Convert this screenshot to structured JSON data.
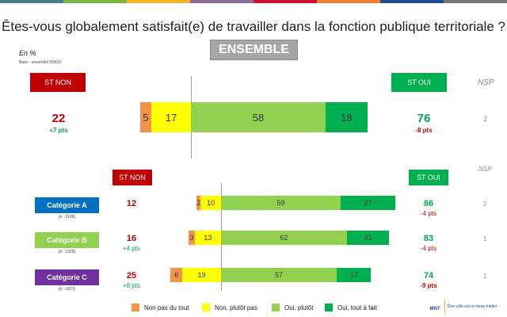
{
  "title": "Êtes-vous globalement satisfait(e) de travailler dans la fonction publique territoriale ?",
  "badge": "ENSEMBLE",
  "unit": "En %",
  "base": "Base : ensemble (5902)",
  "headers": {
    "st_non": "ST NON",
    "st_oui": "ST OUI",
    "nsp": "NSP"
  },
  "colors": {
    "non_pas_du_tout": "#f4934a",
    "non_plutot_pas": "#ffff00",
    "oui_plutot": "#92d050",
    "oui_tout_a_fait": "#00b050",
    "st_non": "#c00000",
    "st_oui": "#00b050",
    "cat_a": "#0070c0",
    "cat_b": "#92d050",
    "cat_c": "#7030a0"
  },
  "chart_data": {
    "type": "bar",
    "orientation": "horizontal-diverging-stacked",
    "legend": [
      "Non pas du tout",
      "Non, plutôt pas",
      "Oui, plutôt",
      "Oui, tout à fait"
    ],
    "legend_position": "bottom",
    "overall": {
      "label": "ENSEMBLE",
      "values": [
        5,
        17,
        58,
        18
      ],
      "st_non": "22",
      "st_non_delta": "+7 pts",
      "st_oui": "76",
      "st_oui_delta": "-8 pts",
      "nsp": "1"
    },
    "categories": [
      {
        "label": "Catégorie A",
        "base": "(b : 2106)",
        "values": [
          2,
          10,
          59,
          27
        ],
        "st_non": "12",
        "st_non_delta": "",
        "st_oui": "86",
        "st_oui_delta": "-4 pts",
        "nsp": "2"
      },
      {
        "label": "Catégorie B",
        "base": "(b : 1925)",
        "values": [
          3,
          13,
          62,
          21
        ],
        "st_non": "16",
        "st_non_delta": "+4 pts",
        "st_oui": "83",
        "st_oui_delta": "-4 pts",
        "nsp": "1"
      },
      {
        "label": "Catégorie C",
        "base": "(b : 1871)",
        "values": [
          6,
          19,
          57,
          17
        ],
        "st_non": "25",
        "st_non_delta": "+8 pts",
        "st_oui": "74",
        "st_oui_delta": "-9 pts",
        "nsp": "1"
      }
    ]
  },
  "logo": {
    "name": "MNT",
    "tagline": "Être utile est un beau métier"
  }
}
